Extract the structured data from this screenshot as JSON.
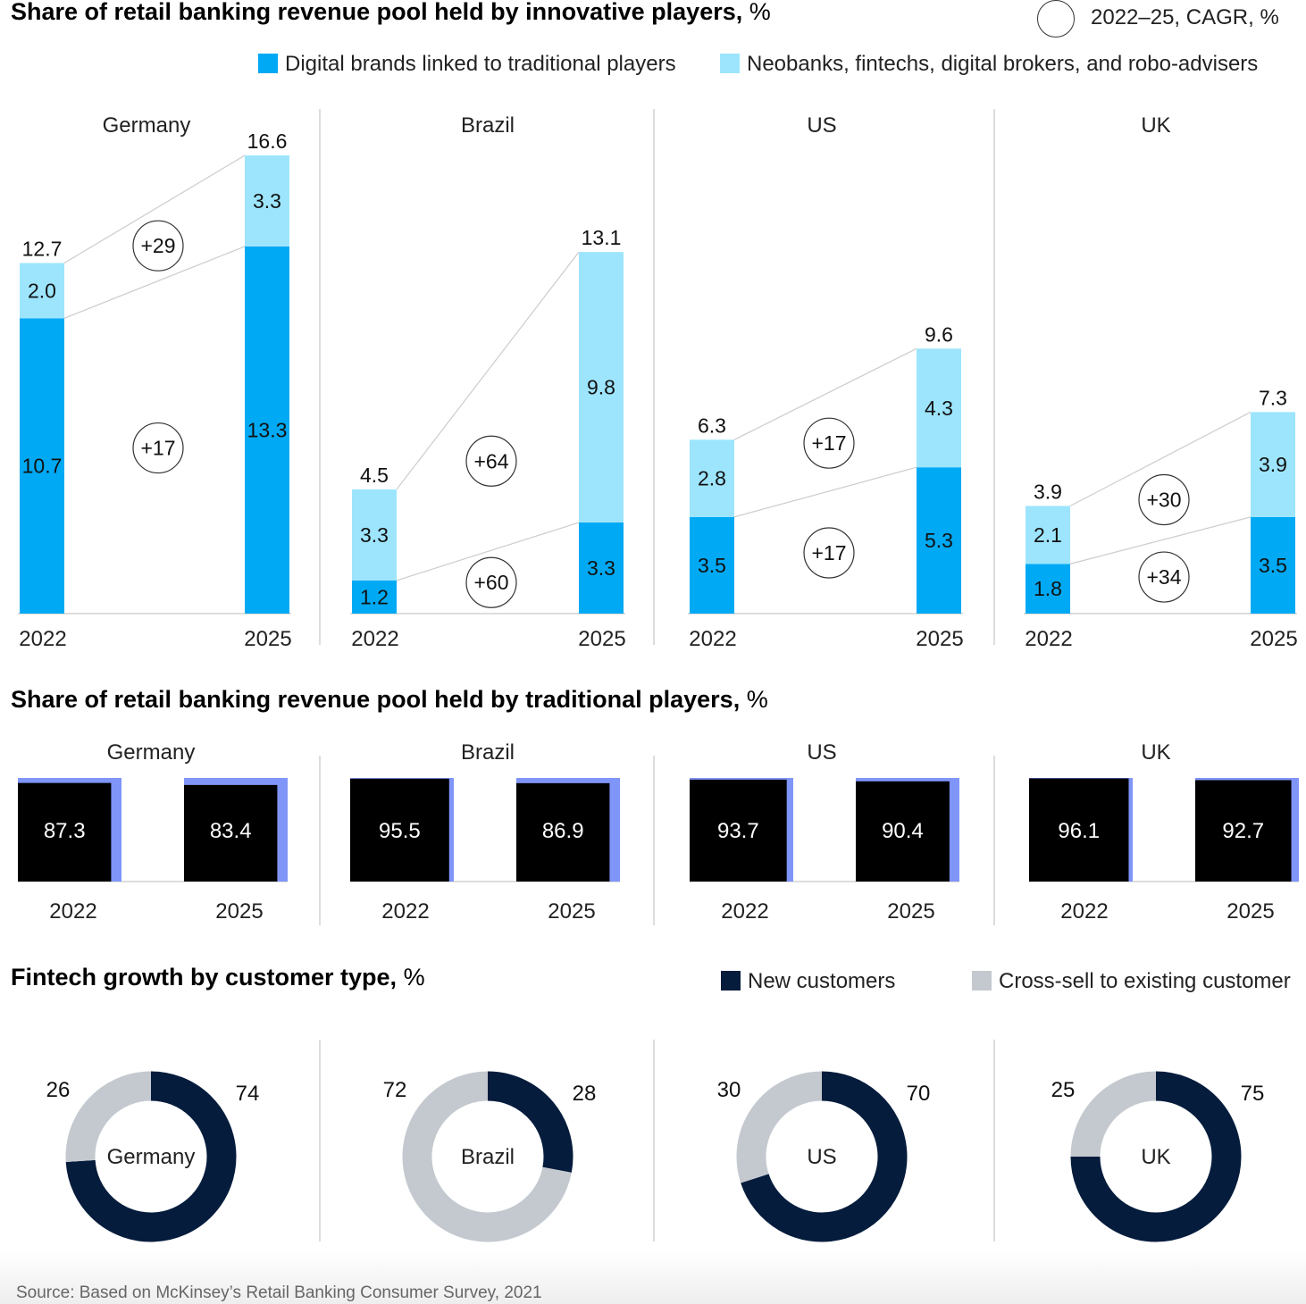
{
  "section1": {
    "title_bold": "Share of retail banking revenue pool held by innovative players,",
    "title_unit": " %",
    "cagr_key_label": "2022–25, CAGR, %",
    "legend": [
      {
        "label": "Digital brands linked to traditional players",
        "color": "#00a9f4"
      },
      {
        "label": "Neobanks, fintechs, digital brokers, and robo-advisers",
        "color": "#9de5fd"
      }
    ]
  },
  "section2": {
    "title_bold": "Share of retail banking revenue pool held by traditional players,",
    "title_unit": " %"
  },
  "section3": {
    "title_bold": "Fintech growth by customer type,",
    "title_unit": " %",
    "legend": [
      {
        "label": "New customers",
        "color": "#051c3c"
      },
      {
        "label": "Cross-sell to existing customer",
        "color": "#c4c9cf"
      }
    ]
  },
  "source": "Source: Based on McKinsey’s Retail Banking Consumer Survey, 2021",
  "chart_data": [
    {
      "type": "bar",
      "stacked": true,
      "title": "Share of retail banking revenue pool held by innovative players, %",
      "years": [
        "2022",
        "2025"
      ],
      "series": [
        {
          "name": "Digital brands linked to traditional players",
          "color": "#00a9f4"
        },
        {
          "name": "Neobanks, fintechs, digital brokers, and robo-advisers",
          "color": "#9de5fd"
        }
      ],
      "panels": [
        {
          "country": "Germany",
          "digital": [
            10.7,
            13.3
          ],
          "neo": [
            2.0,
            3.3
          ],
          "totals": [
            12.7,
            16.6
          ],
          "cagr_digital": "+17",
          "cagr_neo": "+29"
        },
        {
          "country": "Brazil",
          "digital": [
            1.2,
            3.3
          ],
          "neo": [
            3.3,
            9.8
          ],
          "totals": [
            4.5,
            13.1
          ],
          "cagr_digital": "+60",
          "cagr_neo": "+64"
        },
        {
          "country": "US",
          "digital": [
            3.5,
            5.3
          ],
          "neo": [
            2.8,
            4.3
          ],
          "totals": [
            6.3,
            9.6
          ],
          "cagr_digital": "+17",
          "cagr_neo": "+17"
        },
        {
          "country": "UK",
          "digital": [
            1.8,
            3.5
          ],
          "neo": [
            2.1,
            3.9
          ],
          "totals": [
            3.9,
            7.3
          ],
          "cagr_digital": "+34",
          "cagr_neo": "+30"
        }
      ],
      "ylim": [
        0,
        16.6
      ]
    },
    {
      "type": "bar",
      "title": "Share of retail banking revenue pool held by traditional players, %",
      "years": [
        "2022",
        "2025"
      ],
      "bar_color": "#000000",
      "remainder_color": "#8095f8",
      "panels": [
        {
          "country": "Germany",
          "values": [
            87.3,
            83.4
          ]
        },
        {
          "country": "Brazil",
          "values": [
            95.5,
            86.9
          ]
        },
        {
          "country": "US",
          "values": [
            93.7,
            90.4
          ]
        },
        {
          "country": "UK",
          "values": [
            96.1,
            92.7
          ]
        }
      ],
      "ylim": [
        0,
        100
      ]
    },
    {
      "type": "pie",
      "donut": true,
      "title": "Fintech growth by customer type, %",
      "series": [
        {
          "name": "New customers",
          "color": "#051c3c"
        },
        {
          "name": "Cross-sell to existing customer",
          "color": "#c4c9cf"
        }
      ],
      "panels": [
        {
          "country": "Germany",
          "new": 74,
          "cross": 26
        },
        {
          "country": "Brazil",
          "new": 28,
          "cross": 72
        },
        {
          "country": "US",
          "new": 70,
          "cross": 30
        },
        {
          "country": "UK",
          "new": 75,
          "cross": 25
        }
      ]
    }
  ]
}
